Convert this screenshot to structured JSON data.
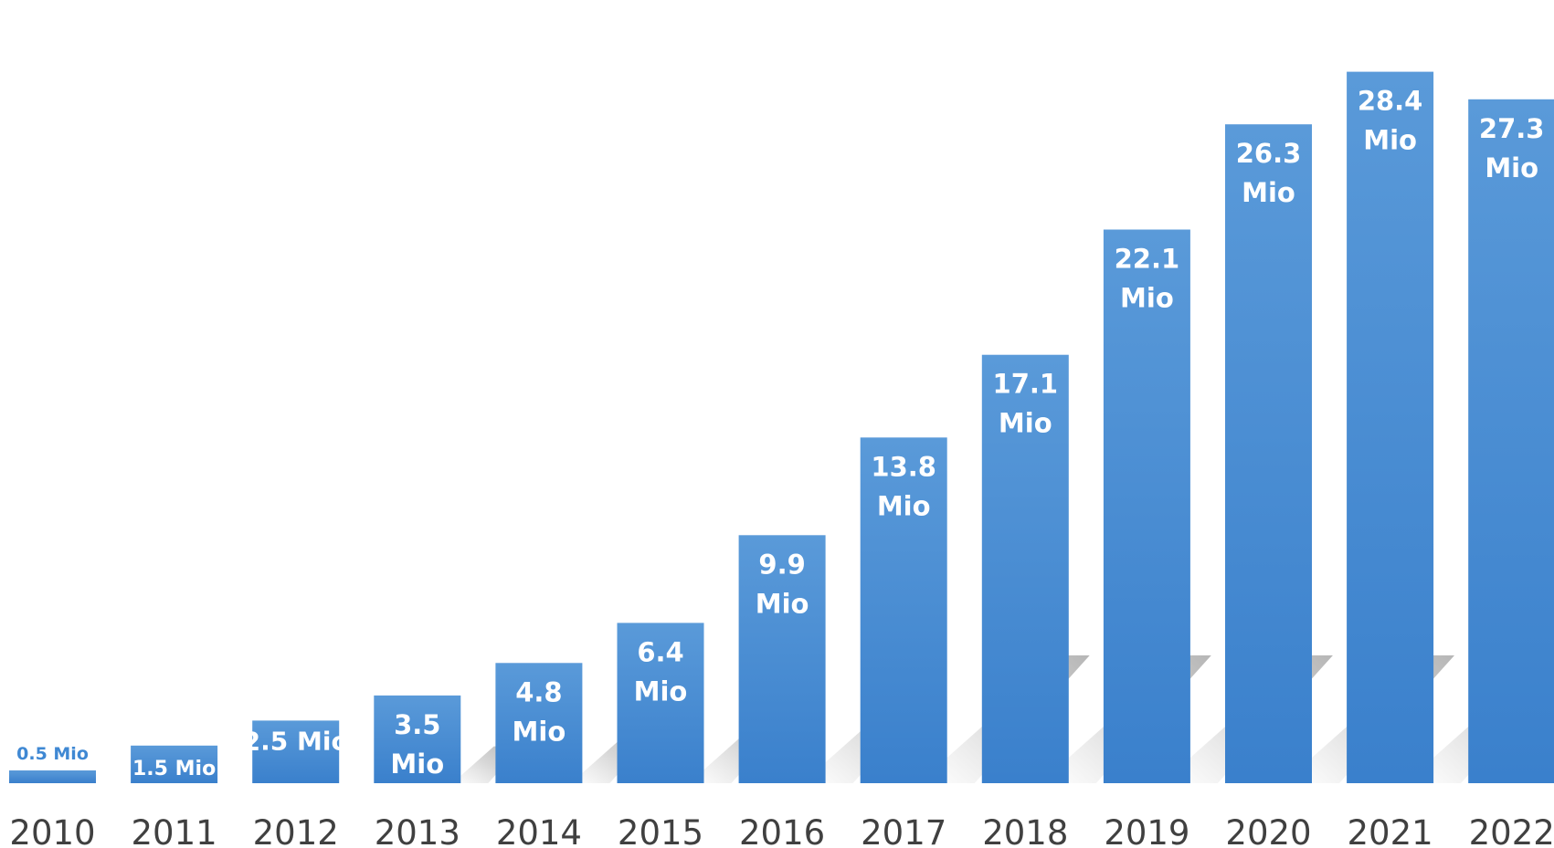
{
  "chart_data": {
    "type": "bar",
    "title": "",
    "xlabel": "",
    "ylabel": "",
    "categories": [
      "2010",
      "2011",
      "2012",
      "2013",
      "2014",
      "2015",
      "2016",
      "2017",
      "2018",
      "2019",
      "2020",
      "2021",
      "2022"
    ],
    "values": [
      0.5,
      1.5,
      2.5,
      3.5,
      4.8,
      6.4,
      9.9,
      13.8,
      17.1,
      22.1,
      26.3,
      28.4,
      27.3
    ],
    "data_labels": [
      "0.5 Mio",
      "1.5 Mio",
      "2.5 Mio",
      "3.5 Mio",
      "4.8 Mio",
      "6.4 Mio",
      "9.9 Mio",
      "13.8 Mio",
      "17.1 Mio",
      "22.1 Mio",
      "26.3 Mio",
      "28.4 Mio",
      "27.3 Mio"
    ],
    "ylim": [
      0,
      30
    ],
    "grid": false,
    "legend": "none",
    "bar_color": "#3f88d3",
    "bar_color_dark": "#3a80cc",
    "label_color": "#ffffff",
    "outside_label_color": "#3f88d3"
  }
}
